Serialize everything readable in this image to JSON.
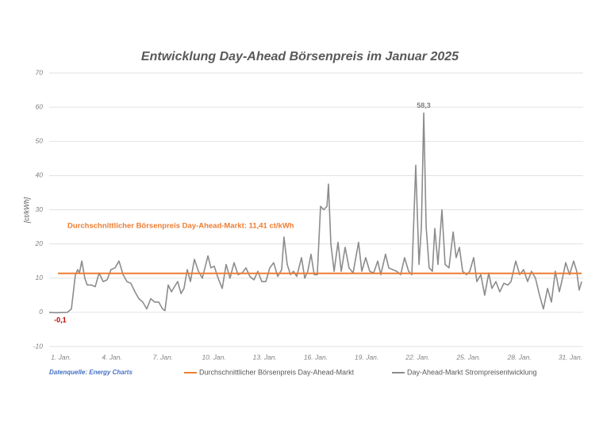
{
  "chart_data": {
    "type": "line",
    "title": "Entwicklung Day-Ahead Börsenpreis im Januar 2025",
    "y_label": "[ct/kWh]",
    "source": "Datenquelle: Energy Charts",
    "annotation": "Durchschnittlicher Börsenpreis Day-Ahead-Markt: 11,41 ct/kWh",
    "xlim": [
      0.3,
      31.75
    ],
    "xticks": [
      {
        "value": 1,
        "label": "1. Jan."
      },
      {
        "value": 4,
        "label": "4. Jan."
      },
      {
        "value": 7,
        "label": "7. Jan."
      },
      {
        "value": 10,
        "label": "10. Jan."
      },
      {
        "value": 13,
        "label": "13. Jan."
      },
      {
        "value": 16,
        "label": "16. Jan."
      },
      {
        "value": 19,
        "label": "19. Jan."
      },
      {
        "value": 22,
        "label": "22. Jan."
      },
      {
        "value": 25,
        "label": "25. Jan."
      },
      {
        "value": 28,
        "label": "28. Jan."
      },
      {
        "value": 31,
        "label": "31. Jan."
      }
    ],
    "ylim": [
      -10,
      70
    ],
    "yticks": [
      -10,
      0,
      10,
      20,
      30,
      40,
      50,
      60,
      70
    ],
    "grid": true,
    "legend": "bottom",
    "series": [
      {
        "name": "Durchschnittlicher Börsenpreis Day-Ahead-Markt",
        "color": "#ed7d31",
        "x": [
          0.81,
          31.66
        ],
        "values": [
          11.41,
          11.41
        ]
      },
      {
        "name": "Day-Ahead-Markt Strompreisentwicklung",
        "color": "#8c8c8c",
        "x": [
          0.3,
          0.67,
          1.37,
          1.61,
          1.84,
          1.98,
          2.08,
          2.22,
          2.4,
          2.54,
          2.78,
          3.01,
          3.24,
          3.48,
          3.71,
          3.94,
          4.18,
          4.41,
          4.65,
          4.88,
          5.11,
          5.35,
          5.58,
          5.81,
          6.05,
          6.28,
          6.51,
          6.75,
          6.98,
          7.12,
          7.31,
          7.5,
          7.68,
          7.87,
          8.06,
          8.24,
          8.43,
          8.62,
          8.85,
          9.09,
          9.32,
          9.65,
          9.83,
          10.02,
          10.25,
          10.49,
          10.72,
          10.95,
          11.19,
          11.42,
          11.66,
          11.89,
          12.12,
          12.36,
          12.59,
          12.82,
          13.06,
          13.29,
          13.52,
          13.76,
          13.99,
          14.13,
          14.32,
          14.51,
          14.69,
          14.88,
          15.16,
          15.35,
          15.53,
          15.72,
          15.91,
          16.09,
          16.28,
          16.47,
          16.66,
          16.75,
          16.89,
          17.08,
          17.31,
          17.5,
          17.73,
          17.96,
          18.2,
          18.52,
          18.71,
          18.94,
          19.18,
          19.41,
          19.65,
          19.83,
          20.11,
          20.3,
          20.53,
          20.77,
          21.0,
          21.23,
          21.47,
          21.66,
          21.89,
          22.08,
          22.22,
          22.36,
          22.5,
          22.68,
          22.87,
          23.01,
          23.2,
          23.43,
          23.62,
          23.85,
          24.09,
          24.27,
          24.46,
          24.65,
          24.88,
          25.07,
          25.3,
          25.49,
          25.72,
          25.95,
          26.19,
          26.37,
          26.61,
          26.84,
          27.08,
          27.31,
          27.5,
          27.78,
          28.01,
          28.24,
          28.48,
          28.71,
          28.94,
          29.18,
          29.41,
          29.65,
          29.88,
          30.11,
          30.35,
          30.49,
          30.72,
          30.95,
          31.19,
          31.37,
          31.51,
          31.66
        ],
        "values": [
          0,
          -0.1,
          0,
          1,
          11,
          12.5,
          11.5,
          15,
          10,
          8,
          8,
          7.5,
          11.5,
          9,
          9.5,
          12.5,
          13,
          15,
          11,
          9,
          8.5,
          6,
          4,
          3,
          1,
          4,
          3,
          3,
          1,
          0.5,
          8,
          6,
          7.5,
          9,
          5.5,
          7,
          12.5,
          9,
          15.5,
          12,
          10,
          16.5,
          13,
          13.5,
          10,
          7,
          14,
          10,
          14.5,
          11,
          11.5,
          13,
          10.5,
          9.5,
          12,
          9,
          9,
          13,
          14.5,
          10.5,
          12.5,
          22,
          14,
          11,
          12,
          10.5,
          16,
          10,
          12,
          17,
          11,
          11,
          31,
          30,
          31,
          37.5,
          20,
          12,
          20.5,
          12,
          19,
          13,
          11.5,
          20.5,
          12,
          16,
          12,
          11.5,
          15,
          11,
          17,
          13,
          12.5,
          12,
          11,
          16,
          12,
          11,
          43,
          14,
          25,
          58.3,
          25,
          13,
          12,
          24.5,
          14,
          30,
          14,
          13,
          23.5,
          16,
          19,
          12,
          11,
          12,
          16,
          9,
          11,
          5,
          11.5,
          7,
          9,
          6,
          8.5,
          8,
          9,
          15,
          11,
          12.5,
          9,
          12,
          10,
          5,
          1,
          7,
          3,
          12,
          6,
          9,
          14.5,
          11,
          15,
          12,
          6.5,
          9
        ]
      }
    ],
    "annotations": [
      {
        "text": "58,3",
        "x": 22.36,
        "y": 58.3
      },
      {
        "text": "-0,1",
        "x": 0.67,
        "y": -0.1,
        "color": "#c00000"
      }
    ]
  }
}
